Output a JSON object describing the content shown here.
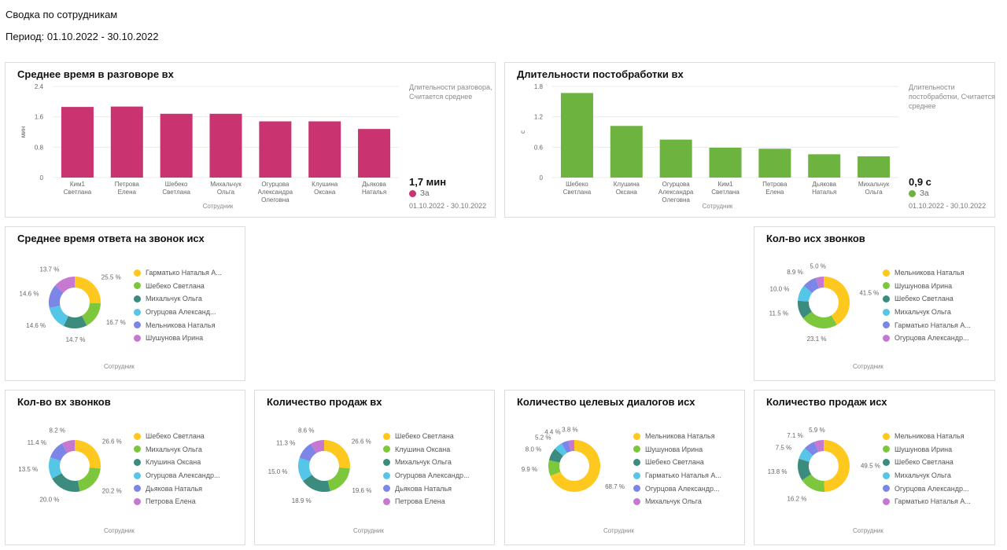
{
  "header": {
    "title": "Сводка по сотрудникам",
    "period": "Период: 01.10.2022 - 30.10.2022"
  },
  "colors": {
    "crimson": "#C93370",
    "green": "#6DB33F",
    "palette": [
      "#FFC81E",
      "#7DC73D",
      "#3B8C7E",
      "#55C5E8",
      "#7C86E6",
      "#C679D1"
    ]
  },
  "bar_cards": [
    {
      "title": "Среднее время в разговоре вх",
      "note": "Длительности разговора, Считается среднее",
      "big_value": "1,7 мин",
      "legend_label": "За",
      "period": "01.10.2022 - 30.10.2022",
      "color_key": "crimson"
    },
    {
      "title": "Длительности постобработки вх",
      "note": "Длительности постобработки, Считается среднее",
      "big_value": "0,9 с",
      "legend_label": "За",
      "period": "01.10.2022 - 30.10.2022",
      "color_key": "green"
    }
  ],
  "pie_cards": [
    {
      "title": "Среднее время ответа на звонок исх"
    },
    {
      "title": "Кол-во исх звонков"
    },
    {
      "title": "Кол-во вх звонков"
    },
    {
      "title": "Количество продаж вх"
    },
    {
      "title": "Количество целевых диалогов исх"
    },
    {
      "title": "Количество продаж исх"
    }
  ],
  "chart_data": [
    {
      "type": "bar",
      "title": "Среднее время в разговоре вх",
      "xlabel": "Сотрудник",
      "ylabel": "мин",
      "categories": [
        "Ким1 Светлана",
        "Петрова Елена",
        "Шебеко Светлана",
        "Михальчук Ольга",
        "Огурцова Александра Олеговна",
        "Клушина Оксана",
        "Дьякова Наталья"
      ],
      "values": [
        1.86,
        1.87,
        1.68,
        1.68,
        1.48,
        1.48,
        1.28
      ],
      "yticks": [
        "2.4",
        "1.6",
        "0.8",
        "0"
      ],
      "ylim": [
        0,
        2.4
      ],
      "grid": true
    },
    {
      "type": "bar",
      "title": "Длительности постобработки вх",
      "xlabel": "Сотрудник",
      "ylabel": "с",
      "categories": [
        "Шебеко Светлана",
        "Клушина Оксана",
        "Огурцова Александра Олеговна",
        "Ким1 Светлана",
        "Петрова Елена",
        "Дьякова Наталья",
        "Михальчук Ольга"
      ],
      "values": [
        1.67,
        1.02,
        0.75,
        0.59,
        0.57,
        0.46,
        0.42
      ],
      "yticks": [
        "1.8",
        "1.2",
        "0.6",
        "0"
      ],
      "ylim": [
        0,
        1.8
      ],
      "grid": true
    },
    {
      "type": "pie",
      "title": "Среднее время ответа на звонок исх",
      "xlabel": "Сотрудник",
      "labels": [
        "Гарматько Наталья А...",
        "Шебеко Светлана",
        "Михальчук Ольга",
        "Огурцова Александ...",
        "Мельникова Наталья",
        "Шушунова Ирина"
      ],
      "values": [
        25.5,
        16.7,
        14.7,
        14.6,
        14.6,
        13.7
      ],
      "value_labels": [
        "25.5 %",
        "16.7 %",
        "14.7 %",
        "14.6 %",
        "14.6 %",
        "13.7 %"
      ]
    },
    {
      "type": "pie",
      "title": "Кол-во исх звонков",
      "xlabel": "Сотрудник",
      "labels": [
        "Мельникова Наталья",
        "Шушунова Ирина",
        "Шебеко Светлана",
        "Михальчук Ольга",
        "Гарматько Наталья А...",
        "Огурцова Александр..."
      ],
      "values": [
        41.5,
        23.1,
        11.5,
        10.0,
        8.9,
        5.0
      ],
      "value_labels": [
        "41.5 %",
        "23.1 %",
        "11.5 %",
        "10.0 %",
        "8.9 %",
        "5.0 %"
      ]
    },
    {
      "type": "pie",
      "title": "Кол-во вх звонков",
      "xlabel": "Сотрудник",
      "labels": [
        "Шебеко Светлана",
        "Михальчук Ольга",
        "Клушина Оксана",
        "Огурцова Александр...",
        "Дьякова Наталья",
        "Петрова Елена"
      ],
      "values": [
        26.6,
        20.2,
        20.0,
        13.5,
        11.4,
        8.2
      ],
      "value_labels": [
        "26.6 %",
        "20.2 %",
        "20.0 %",
        "13.5 %",
        "11.4 %",
        "8.2 %"
      ]
    },
    {
      "type": "pie",
      "title": "Количество продаж вх",
      "xlabel": "Сотрудник",
      "labels": [
        "Шебеко Светлана",
        "Клушина Оксана",
        "Михальчук Ольга",
        "Огурцова Александр...",
        "Дьякова Наталья",
        "Петрова Елена"
      ],
      "values": [
        26.6,
        19.6,
        18.9,
        15.0,
        11.3,
        8.6
      ],
      "value_labels": [
        "26.6 %",
        "19.6 %",
        "18.9 %",
        "15.0 %",
        "11.3 %",
        "8.6 %"
      ]
    },
    {
      "type": "pie",
      "title": "Количество целевых диалогов исх",
      "xlabel": "Сотрудник",
      "labels": [
        "Мельникова Наталья",
        "Шушунова Ирина",
        "Шебеко Светлана",
        "Гарматько Наталья А...",
        "Огурцова Александр...",
        "Михальчук Ольга"
      ],
      "values": [
        68.7,
        9.9,
        8.0,
        5.2,
        4.4,
        3.8
      ],
      "value_labels": [
        "68.7 %",
        "9.9 %",
        "8.0 %",
        "5.2 %",
        "4.4 %",
        "3.8 %"
      ]
    },
    {
      "type": "pie",
      "title": "Количество продаж исх",
      "xlabel": "Сотрудник",
      "labels": [
        "Мельникова Наталья",
        "Шушунова Ирина",
        "Шебеко Светлана",
        "Михальчук Ольга",
        "Огурцова Александр...",
        "Гарматько Наталья А..."
      ],
      "values": [
        49.5,
        16.2,
        13.8,
        7.5,
        7.1,
        5.9
      ],
      "value_labels": [
        "49.5 %",
        "16.2 %",
        "13.8 %",
        "7.5 %",
        "7.1 %",
        "5.9 %"
      ]
    }
  ]
}
